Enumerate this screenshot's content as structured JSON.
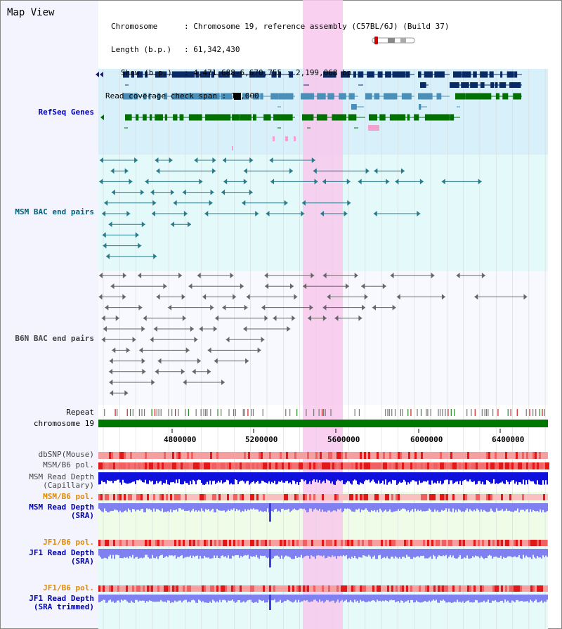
{
  "page": {
    "title": "Map View",
    "info": {
      "chromosome_label": "Chromosome",
      "chromosome_value": "Chromosome 19, reference assembly (C57BL/6J) (Build 37)",
      "length_label": "Length (b.p.)",
      "length_value": "61,342,430",
      "show_label": "Show (b.p.)",
      "show_value": "4,471,688-6,670,755 : 2,199,068 bp",
      "coverage_label": "Read coverage check span",
      "coverage_value": "10,000"
    }
  },
  "tracks": {
    "refseq": "RefSeq Genes",
    "msm_bac": "MSM BAC end pairs",
    "b6n_bac": "B6N BAC end pairs",
    "repeat": "Repeat",
    "chromosome": "chromosome 19",
    "dbsnp": "dbSNP(Mouse)",
    "msm_b6_pol1": "MSM/B6 pol.",
    "msm_depth_cap_1": "MSM Read Depth",
    "msm_depth_cap_2": "(Capillary)",
    "msm_b6_pol2": "MSM/B6 pol.",
    "msm_depth_sra_1": "MSM Read Depth",
    "msm_depth_sra_2": "(SRA)",
    "jf1_b6_pol1": "JF1/B6 pol.",
    "jf1_depth_sra_1": "JF1 Read Depth",
    "jf1_depth_sra_2": "(SRA)",
    "jf1_b6_pol2": "JF1/B6 pol.",
    "jf1_depth_trim_1": "JF1 Read Depth",
    "jf1_depth_trim_2": "(SRA trimmed)"
  },
  "axis": {
    "ticks": [
      "4800000",
      "5200000",
      "5600000",
      "6000000",
      "6400000"
    ]
  },
  "colors": {
    "highlight": "#f8c8ec",
    "refseq_bg": "#d8f0fa",
    "msm_bg": "#e4fafa",
    "b6n_bg": "#f8f8ff",
    "dark_navy": "#0a2a66",
    "mid_blue": "#4a8fb8",
    "green": "#007000",
    "chrom_green": "#007700",
    "depth_blue": "#1010dd",
    "depth_light": "#8080f0",
    "snp_red": "#e83030"
  }
}
